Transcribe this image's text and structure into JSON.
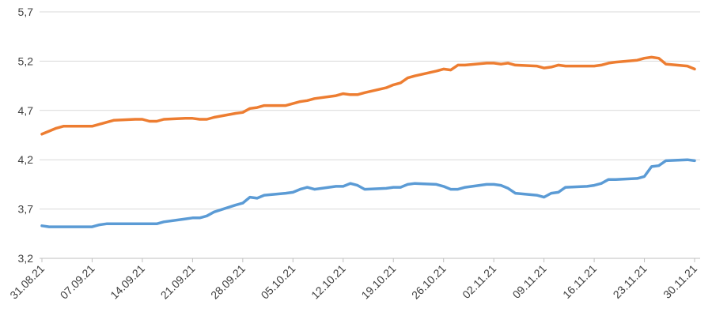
{
  "chart_data": {
    "type": "line",
    "title": "",
    "xlabel": "",
    "ylabel": "",
    "ylim": [
      3.2,
      5.7
    ],
    "yticks": [
      "3,2",
      "3,7",
      "4,2",
      "4,7",
      "5,2",
      "5,7"
    ],
    "ytick_values": [
      3.2,
      3.7,
      4.2,
      4.7,
      5.2,
      5.7
    ],
    "xticks": [
      "31.08.21",
      "07.09.21",
      "14.09.21",
      "21.09.21",
      "28.09.21",
      "05.10.21",
      "12.10.21",
      "19.10.21",
      "26.10.21",
      "02.11.21",
      "09.11.21",
      "16.11.21",
      "23.11.21",
      "30.11.21"
    ],
    "x_range": [
      "2021-08-31",
      "2021-11-30"
    ],
    "grid": "horizontal",
    "series": [
      {
        "color": "#ED7D31",
        "points": [
          [
            "2021-08-31",
            4.46
          ],
          [
            "2021-09-01",
            4.49
          ],
          [
            "2021-09-02",
            4.52
          ],
          [
            "2021-09-03",
            4.54
          ],
          [
            "2021-09-06",
            4.54
          ],
          [
            "2021-09-07",
            4.54
          ],
          [
            "2021-09-08",
            4.56
          ],
          [
            "2021-09-09",
            4.58
          ],
          [
            "2021-09-10",
            4.6
          ],
          [
            "2021-09-13",
            4.61
          ],
          [
            "2021-09-14",
            4.61
          ],
          [
            "2021-09-15",
            4.59
          ],
          [
            "2021-09-16",
            4.59
          ],
          [
            "2021-09-17",
            4.61
          ],
          [
            "2021-09-20",
            4.62
          ],
          [
            "2021-09-21",
            4.62
          ],
          [
            "2021-09-22",
            4.61
          ],
          [
            "2021-09-23",
            4.61
          ],
          [
            "2021-09-24",
            4.63
          ],
          [
            "2021-09-27",
            4.67
          ],
          [
            "2021-09-28",
            4.68
          ],
          [
            "2021-09-29",
            4.72
          ],
          [
            "2021-09-30",
            4.73
          ],
          [
            "2021-10-01",
            4.75
          ],
          [
            "2021-10-04",
            4.75
          ],
          [
            "2021-10-05",
            4.77
          ],
          [
            "2021-10-06",
            4.79
          ],
          [
            "2021-10-07",
            4.8
          ],
          [
            "2021-10-08",
            4.82
          ],
          [
            "2021-10-11",
            4.85
          ],
          [
            "2021-10-12",
            4.87
          ],
          [
            "2021-10-13",
            4.86
          ],
          [
            "2021-10-14",
            4.86
          ],
          [
            "2021-10-15",
            4.88
          ],
          [
            "2021-10-18",
            4.93
          ],
          [
            "2021-10-19",
            4.96
          ],
          [
            "2021-10-20",
            4.98
          ],
          [
            "2021-10-21",
            5.03
          ],
          [
            "2021-10-22",
            5.05
          ],
          [
            "2021-10-25",
            5.1
          ],
          [
            "2021-10-26",
            5.12
          ],
          [
            "2021-10-27",
            5.11
          ],
          [
            "2021-10-28",
            5.16
          ],
          [
            "2021-10-29",
            5.16
          ],
          [
            "2021-11-01",
            5.18
          ],
          [
            "2021-11-02",
            5.18
          ],
          [
            "2021-11-03",
            5.17
          ],
          [
            "2021-11-04",
            5.18
          ],
          [
            "2021-11-05",
            5.16
          ],
          [
            "2021-11-08",
            5.15
          ],
          [
            "2021-11-09",
            5.13
          ],
          [
            "2021-11-10",
            5.14
          ],
          [
            "2021-11-11",
            5.16
          ],
          [
            "2021-11-12",
            5.15
          ],
          [
            "2021-11-15",
            5.15
          ],
          [
            "2021-11-16",
            5.15
          ],
          [
            "2021-11-17",
            5.16
          ],
          [
            "2021-11-18",
            5.18
          ],
          [
            "2021-11-19",
            5.19
          ],
          [
            "2021-11-22",
            5.21
          ],
          [
            "2021-11-23",
            5.23
          ],
          [
            "2021-11-24",
            5.24
          ],
          [
            "2021-11-25",
            5.23
          ],
          [
            "2021-11-26",
            5.17
          ],
          [
            "2021-11-29",
            5.15
          ],
          [
            "2021-11-30",
            5.12
          ]
        ]
      },
      {
        "color": "#5B9BD5",
        "points": [
          [
            "2021-08-31",
            3.53
          ],
          [
            "2021-09-01",
            3.52
          ],
          [
            "2021-09-02",
            3.52
          ],
          [
            "2021-09-03",
            3.52
          ],
          [
            "2021-09-06",
            3.52
          ],
          [
            "2021-09-07",
            3.52
          ],
          [
            "2021-09-08",
            3.54
          ],
          [
            "2021-09-09",
            3.55
          ],
          [
            "2021-09-10",
            3.55
          ],
          [
            "2021-09-13",
            3.55
          ],
          [
            "2021-09-14",
            3.55
          ],
          [
            "2021-09-15",
            3.55
          ],
          [
            "2021-09-16",
            3.55
          ],
          [
            "2021-09-17",
            3.57
          ],
          [
            "2021-09-20",
            3.6
          ],
          [
            "2021-09-21",
            3.61
          ],
          [
            "2021-09-22",
            3.61
          ],
          [
            "2021-09-23",
            3.63
          ],
          [
            "2021-09-24",
            3.67
          ],
          [
            "2021-09-27",
            3.74
          ],
          [
            "2021-09-28",
            3.76
          ],
          [
            "2021-09-29",
            3.82
          ],
          [
            "2021-09-30",
            3.81
          ],
          [
            "2021-10-01",
            3.84
          ],
          [
            "2021-10-04",
            3.86
          ],
          [
            "2021-10-05",
            3.87
          ],
          [
            "2021-10-06",
            3.9
          ],
          [
            "2021-10-07",
            3.92
          ],
          [
            "2021-10-08",
            3.9
          ],
          [
            "2021-10-11",
            3.93
          ],
          [
            "2021-10-12",
            3.93
          ],
          [
            "2021-10-13",
            3.96
          ],
          [
            "2021-10-14",
            3.94
          ],
          [
            "2021-10-15",
            3.9
          ],
          [
            "2021-10-18",
            3.91
          ],
          [
            "2021-10-19",
            3.92
          ],
          [
            "2021-10-20",
            3.92
          ],
          [
            "2021-10-21",
            3.95
          ],
          [
            "2021-10-22",
            3.96
          ],
          [
            "2021-10-25",
            3.95
          ],
          [
            "2021-10-26",
            3.93
          ],
          [
            "2021-10-27",
            3.9
          ],
          [
            "2021-10-28",
            3.9
          ],
          [
            "2021-10-29",
            3.92
          ],
          [
            "2021-11-01",
            3.95
          ],
          [
            "2021-11-02",
            3.95
          ],
          [
            "2021-11-03",
            3.94
          ],
          [
            "2021-11-04",
            3.91
          ],
          [
            "2021-11-05",
            3.86
          ],
          [
            "2021-11-08",
            3.84
          ],
          [
            "2021-11-09",
            3.82
          ],
          [
            "2021-11-10",
            3.86
          ],
          [
            "2021-11-11",
            3.87
          ],
          [
            "2021-11-12",
            3.92
          ],
          [
            "2021-11-15",
            3.93
          ],
          [
            "2021-11-16",
            3.94
          ],
          [
            "2021-11-17",
            3.96
          ],
          [
            "2021-11-18",
            4.0
          ],
          [
            "2021-11-19",
            4.0
          ],
          [
            "2021-11-22",
            4.01
          ],
          [
            "2021-11-23",
            4.03
          ],
          [
            "2021-11-24",
            4.13
          ],
          [
            "2021-11-25",
            4.14
          ],
          [
            "2021-11-26",
            4.19
          ],
          [
            "2021-11-29",
            4.2
          ],
          [
            "2021-11-30",
            4.19
          ]
        ]
      }
    ]
  }
}
